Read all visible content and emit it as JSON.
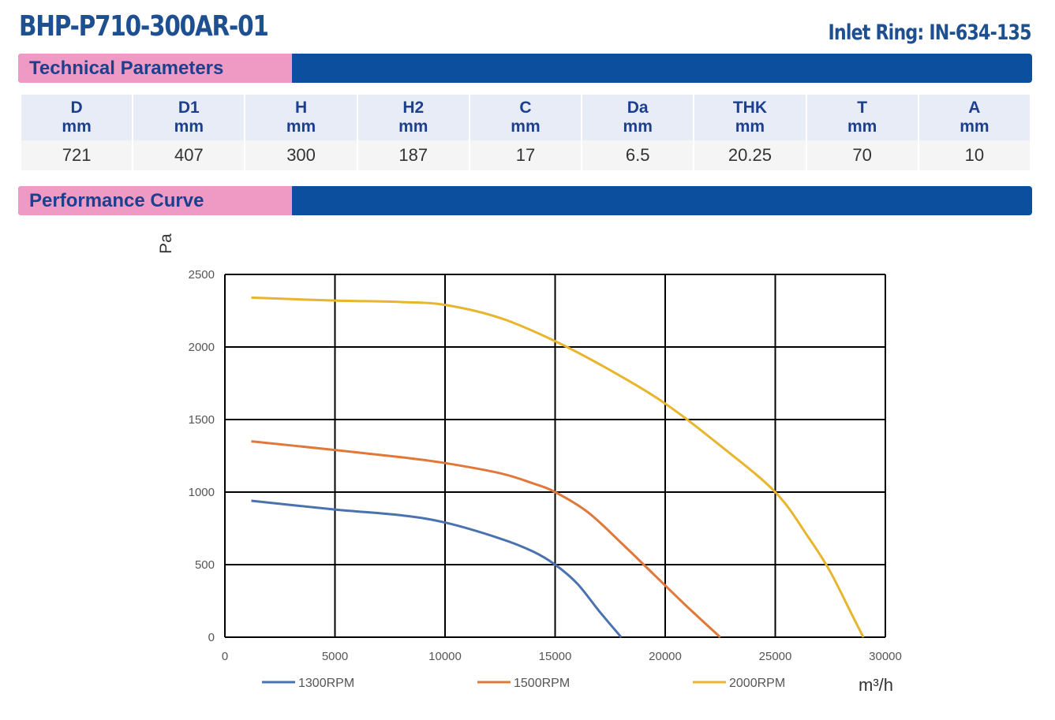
{
  "header": {
    "model": "BHP-P710-300AR-01",
    "inlet_ring": "Inlet Ring: IN-634-135"
  },
  "sections": {
    "technical": "Technical Parameters",
    "performance": "Performance Curve"
  },
  "parameters": {
    "columns": [
      {
        "name": "D",
        "unit": "mm",
        "value": "721"
      },
      {
        "name": "D1",
        "unit": "mm",
        "value": "407"
      },
      {
        "name": "H",
        "unit": "mm",
        "value": "300"
      },
      {
        "name": "H2",
        "unit": "mm",
        "value": "187"
      },
      {
        "name": "C",
        "unit": "mm",
        "value": "17"
      },
      {
        "name": "Da",
        "unit": "mm",
        "value": "6.5"
      },
      {
        "name": "THK",
        "unit": "mm",
        "value": "20.25"
      },
      {
        "name": "T",
        "unit": "mm",
        "value": "70"
      },
      {
        "name": "A",
        "unit": "mm",
        "value": "10"
      }
    ]
  },
  "chart_data": {
    "type": "line",
    "title": "",
    "xlabel": "m³/h",
    "ylabel": "Pa",
    "xlim": [
      0,
      30000
    ],
    "ylim": [
      0,
      2500
    ],
    "xticks": [
      "0",
      "5000",
      "10000",
      "15000",
      "20000",
      "25000",
      "30000"
    ],
    "yticks": [
      "0",
      "500",
      "1000",
      "1500",
      "2000",
      "2500"
    ],
    "grid": true,
    "legend": "bottom",
    "series": [
      {
        "name": "1300RPM",
        "color": "#4a72b0",
        "points": [
          [
            1200,
            940
          ],
          [
            5000,
            880
          ],
          [
            8000,
            840
          ],
          [
            10000,
            790
          ],
          [
            12500,
            680
          ],
          [
            14000,
            590
          ],
          [
            15000,
            500
          ],
          [
            16000,
            370
          ],
          [
            17000,
            180
          ],
          [
            18000,
            0
          ]
        ]
      },
      {
        "name": "1500RPM",
        "color": "#e0783a",
        "points": [
          [
            1200,
            1350
          ],
          [
            5000,
            1290
          ],
          [
            8000,
            1240
          ],
          [
            10000,
            1200
          ],
          [
            12500,
            1130
          ],
          [
            14000,
            1060
          ],
          [
            15000,
            1000
          ],
          [
            16500,
            860
          ],
          [
            18000,
            650
          ],
          [
            19500,
            430
          ],
          [
            21000,
            210
          ],
          [
            22500,
            0
          ]
        ]
      },
      {
        "name": "2000RPM",
        "color": "#e8b52c",
        "points": [
          [
            1200,
            2340
          ],
          [
            5000,
            2320
          ],
          [
            8000,
            2310
          ],
          [
            10000,
            2290
          ],
          [
            12500,
            2200
          ],
          [
            15000,
            2040
          ],
          [
            17500,
            1840
          ],
          [
            20000,
            1610
          ],
          [
            22500,
            1320
          ],
          [
            25000,
            1000
          ],
          [
            26500,
            690
          ],
          [
            27500,
            450
          ],
          [
            28500,
            150
          ],
          [
            29000,
            0
          ]
        ]
      }
    ]
  }
}
